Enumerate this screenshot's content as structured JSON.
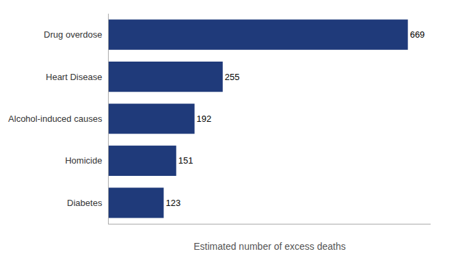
{
  "chart_data": {
    "type": "bar",
    "orientation": "horizontal",
    "categories": [
      "Diabetes",
      "Homicide",
      "Alcohol-induced causes",
      "Heart Disease",
      "Drug overdose"
    ],
    "values": [
      123,
      151,
      192,
      255,
      669
    ],
    "color": "#1F3A7A",
    "xlabel": "Estimated number of excess deaths",
    "xlim": [
      0,
      720
    ],
    "xticks": [],
    "grid": false,
    "data_labels": true,
    "tick_labels": "y"
  }
}
